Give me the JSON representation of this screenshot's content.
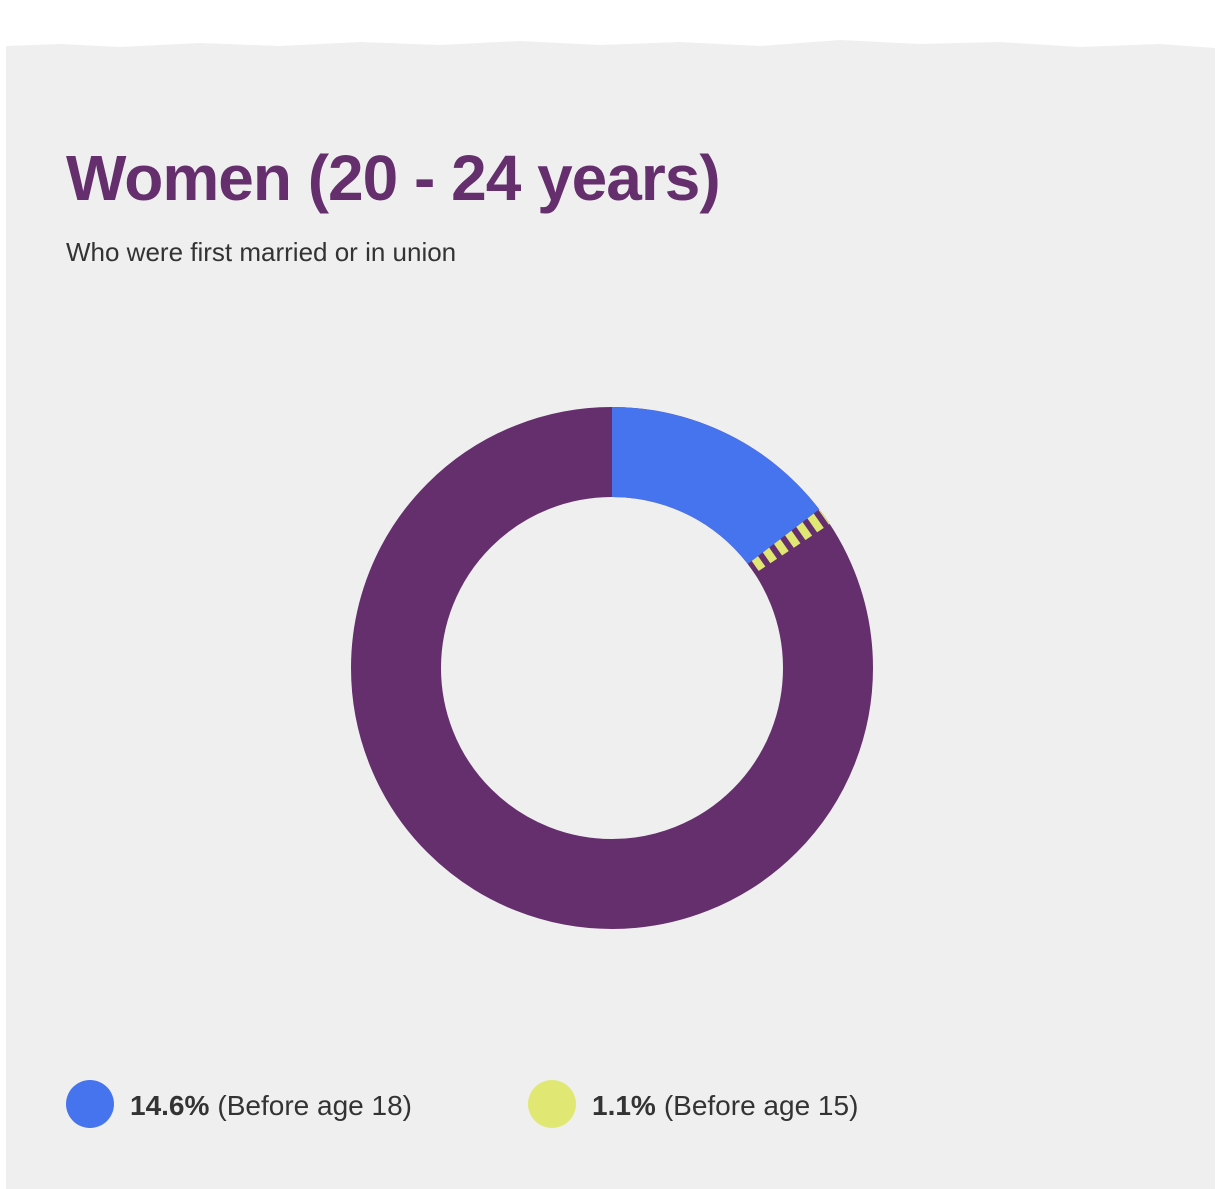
{
  "chart_data": {
    "type": "pie",
    "donut": true,
    "title": "Women (20 - 24 years)",
    "subtitle": "Who were first married or in union",
    "categories": [
      "(Before age 18)",
      "(Before age 15)"
    ],
    "values": [
      14.6,
      1.1
    ],
    "value_labels": [
      "14.6%",
      "1.1%"
    ],
    "colors": [
      "#4674ee",
      "#e0e873"
    ]
  }
}
